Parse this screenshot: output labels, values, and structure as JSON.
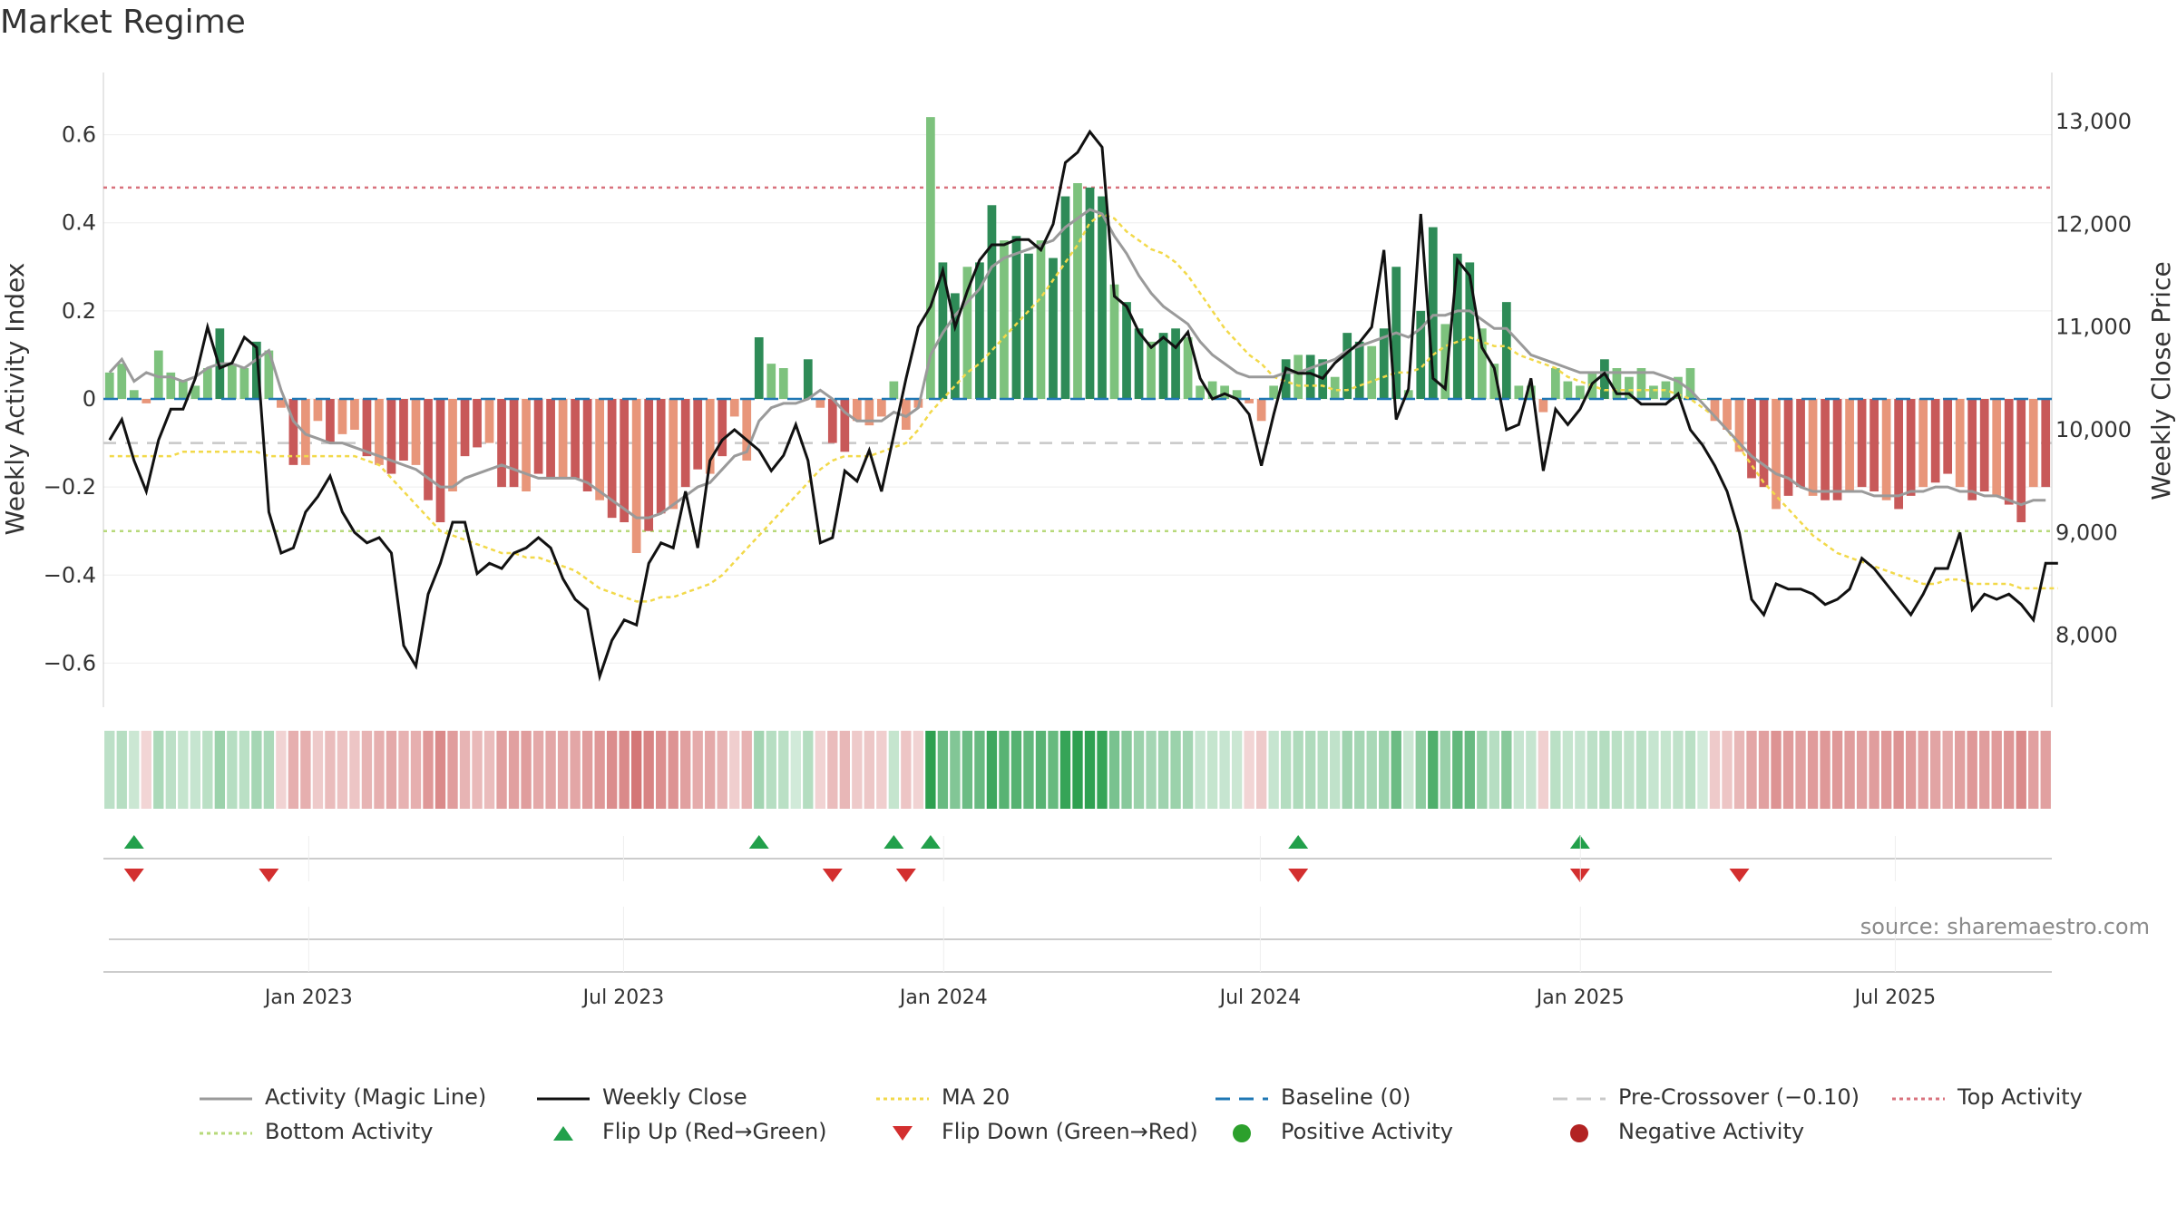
{
  "title": "Market Regime",
  "source": "source: sharemaestro.com",
  "chart_data": {
    "type": "bar",
    "left_axis": {
      "label": "Weekly Activity Index",
      "ylim": [
        -0.7,
        0.7
      ],
      "ticks": [
        -0.6,
        -0.4,
        -0.2,
        0,
        0.2,
        0.4,
        0.6
      ],
      "tick_labels": [
        "−0.6",
        "−0.4",
        "−0.2",
        "0",
        "0.2",
        "0.4",
        "0.6"
      ]
    },
    "right_axis": {
      "label": "Weekly Close Price",
      "ylim": [
        7300,
        13300
      ],
      "ticks": [
        8000,
        9000,
        10000,
        11000,
        12000,
        13000
      ],
      "tick_labels": [
        "8,000",
        "9,000",
        "10,000",
        "11,000",
        "12,000",
        "13,000"
      ]
    },
    "x_axis": {
      "start": "2022-09-05",
      "end": "2025-09-29",
      "ticks": [
        "2023-01-01",
        "2023-07-01",
        "2024-01-01",
        "2024-07-01",
        "2025-01-01",
        "2025-07-01"
      ],
      "tick_labels": [
        "Jan 2023",
        "Jul 2023",
        "Jan 2024",
        "Jul 2024",
        "Jan 2025",
        "Jul 2025"
      ]
    },
    "reference_lines": {
      "baseline": 0,
      "pre_crossover": -0.1,
      "top_activity": 0.48,
      "bottom_activity": -0.3
    },
    "activity": [
      0.06,
      0.08,
      0.02,
      -0.01,
      0.11,
      0.06,
      0.04,
      0.03,
      0.07,
      0.16,
      0.08,
      0.07,
      0.13,
      0.11,
      -0.02,
      -0.15,
      -0.15,
      -0.05,
      -0.1,
      -0.08,
      -0.07,
      -0.13,
      -0.15,
      -0.17,
      -0.14,
      -0.15,
      -0.23,
      -0.28,
      -0.21,
      -0.13,
      -0.11,
      -0.1,
      -0.2,
      -0.2,
      -0.21,
      -0.17,
      -0.18,
      -0.18,
      -0.18,
      -0.21,
      -0.23,
      -0.27,
      -0.28,
      -0.35,
      -0.3,
      -0.26,
      -0.25,
      -0.2,
      -0.16,
      -0.17,
      -0.13,
      -0.04,
      -0.14,
      0.14,
      0.08,
      0.07,
      0.0,
      0.09,
      -0.02,
      -0.1,
      -0.12,
      -0.05,
      -0.06,
      -0.04,
      0.04,
      -0.07,
      -0.02,
      0.64,
      0.31,
      0.24,
      0.3,
      0.31,
      0.44,
      0.36,
      0.37,
      0.33,
      0.36,
      0.32,
      0.46,
      0.49,
      0.48,
      0.46,
      0.26,
      0.22,
      0.16,
      0.13,
      0.15,
      0.16,
      0.14,
      0.03,
      0.04,
      0.03,
      0.02,
      -0.01,
      -0.05,
      0.03,
      0.09,
      0.1,
      0.1,
      0.09,
      0.05,
      0.15,
      0.13,
      0.12,
      0.16,
      0.3,
      0.02,
      0.2,
      0.39,
      0.17,
      0.33,
      0.31,
      0.16,
      0.08,
      0.22,
      0.03,
      0.03,
      -0.03,
      0.07,
      0.04,
      0.03,
      0.06,
      0.09,
      0.07,
      0.05,
      0.07,
      0.03,
      0.04,
      0.05,
      0.07,
      0.0,
      -0.05,
      -0.07,
      -0.12,
      -0.18,
      -0.2,
      -0.25,
      -0.22,
      -0.2,
      -0.22,
      -0.23,
      -0.23,
      -0.21,
      -0.2,
      -0.21,
      -0.23,
      -0.25,
      -0.22,
      -0.2,
      -0.19,
      -0.17,
      -0.2,
      -0.23,
      -0.21,
      -0.22,
      -0.24,
      -0.28,
      -0.2,
      -0.2
    ],
    "weekly_close": [
      9900,
      10100,
      9700,
      9400,
      9900,
      10200,
      10200,
      10500,
      11000,
      10600,
      10650,
      10900,
      10800,
      9200,
      8800,
      8850,
      9200,
      9350,
      9550,
      9200,
      9000,
      8900,
      8950,
      8800,
      7900,
      7700,
      8400,
      8700,
      9100,
      9100,
      8600,
      8700,
      8650,
      8800,
      8850,
      8950,
      8850,
      8550,
      8350,
      8250,
      7600,
      7950,
      8150,
      8100,
      8700,
      8900,
      8850,
      9400,
      8850,
      9700,
      9900,
      10000,
      9900,
      9800,
      9600,
      9750,
      10050,
      9700,
      8900,
      8950,
      9600,
      9500,
      9800,
      9400,
      9950,
      10500,
      11000,
      11200,
      11550,
      11000,
      11350,
      11650,
      11800,
      11800,
      11850,
      11850,
      11750,
      12000,
      12600,
      12700,
      12900,
      12750,
      11300,
      11200,
      10950,
      10800,
      10900,
      10800,
      10950,
      10500,
      10300,
      10350,
      10300,
      10150,
      9650,
      10150,
      10600,
      10550,
      10550,
      10500,
      10650,
      10750,
      10850,
      11000,
      11750,
      10100,
      10400,
      12100,
      10500,
      10400,
      11650,
      11500,
      10800,
      10600,
      10000,
      10050,
      10500,
      9600,
      10200,
      10050,
      10200,
      10450,
      10550,
      10350,
      10350,
      10250,
      10250,
      10250,
      10350,
      10000,
      9850,
      9650,
      9400,
      9000,
      8350,
      8200,
      8500,
      8450,
      8450,
      8400,
      8300,
      8350,
      8450,
      8750,
      8650,
      8500,
      8350,
      8200,
      8400,
      8650,
      8650,
      9000,
      8250,
      8400,
      8350,
      8400,
      8300,
      8150,
      8700,
      8700
    ],
    "magic_line": [
      0.06,
      0.09,
      0.04,
      0.06,
      0.05,
      0.05,
      0.04,
      0.05,
      0.07,
      0.08,
      0.08,
      0.07,
      0.09,
      0.11,
      0.02,
      -0.05,
      -0.08,
      -0.09,
      -0.1,
      -0.1,
      -0.11,
      -0.12,
      -0.13,
      -0.14,
      -0.15,
      -0.16,
      -0.18,
      -0.2,
      -0.2,
      -0.18,
      -0.17,
      -0.16,
      -0.15,
      -0.16,
      -0.17,
      -0.18,
      -0.18,
      -0.18,
      -0.18,
      -0.19,
      -0.21,
      -0.23,
      -0.25,
      -0.27,
      -0.27,
      -0.26,
      -0.24,
      -0.22,
      -0.2,
      -0.19,
      -0.16,
      -0.13,
      -0.12,
      -0.05,
      -0.02,
      -0.01,
      -0.01,
      0.0,
      0.02,
      0.0,
      -0.03,
      -0.05,
      -0.05,
      -0.05,
      -0.03,
      -0.04,
      -0.02,
      0.1,
      0.15,
      0.19,
      0.22,
      0.25,
      0.3,
      0.32,
      0.33,
      0.34,
      0.35,
      0.36,
      0.39,
      0.41,
      0.43,
      0.42,
      0.37,
      0.33,
      0.28,
      0.24,
      0.21,
      0.19,
      0.17,
      0.13,
      0.1,
      0.08,
      0.06,
      0.05,
      0.05,
      0.05,
      0.06,
      0.06,
      0.07,
      0.08,
      0.09,
      0.11,
      0.12,
      0.13,
      0.14,
      0.15,
      0.14,
      0.16,
      0.19,
      0.19,
      0.2,
      0.2,
      0.18,
      0.16,
      0.16,
      0.13,
      0.1,
      0.09,
      0.08,
      0.07,
      0.06,
      0.06,
      0.06,
      0.06,
      0.06,
      0.06,
      0.06,
      0.05,
      0.04,
      0.02,
      -0.01,
      -0.04,
      -0.07,
      -0.1,
      -0.13,
      -0.15,
      -0.17,
      -0.18,
      -0.2,
      -0.21,
      -0.21,
      -0.21,
      -0.21,
      -0.21,
      -0.22,
      -0.22,
      -0.22,
      -0.21,
      -0.21,
      -0.2,
      -0.2,
      -0.21,
      -0.21,
      -0.22,
      -0.22,
      -0.23,
      -0.24,
      -0.23,
      -0.23
    ],
    "ma20": [
      -0.13,
      -0.13,
      -0.13,
      -0.13,
      -0.13,
      -0.13,
      -0.12,
      -0.12,
      -0.12,
      -0.12,
      -0.12,
      -0.12,
      -0.12,
      -0.13,
      -0.13,
      -0.13,
      -0.13,
      -0.13,
      -0.13,
      -0.13,
      -0.13,
      -0.14,
      -0.15,
      -0.18,
      -0.21,
      -0.24,
      -0.27,
      -0.3,
      -0.31,
      -0.32,
      -0.33,
      -0.34,
      -0.35,
      -0.35,
      -0.36,
      -0.36,
      -0.37,
      -0.38,
      -0.39,
      -0.41,
      -0.43,
      -0.44,
      -0.45,
      -0.46,
      -0.46,
      -0.45,
      -0.45,
      -0.44,
      -0.43,
      -0.42,
      -0.4,
      -0.37,
      -0.34,
      -0.31,
      -0.28,
      -0.25,
      -0.22,
      -0.19,
      -0.16,
      -0.14,
      -0.13,
      -0.13,
      -0.13,
      -0.12,
      -0.11,
      -0.1,
      -0.07,
      -0.03,
      0.0,
      0.03,
      0.06,
      0.08,
      0.11,
      0.14,
      0.17,
      0.2,
      0.23,
      0.27,
      0.31,
      0.35,
      0.4,
      0.42,
      0.41,
      0.38,
      0.36,
      0.34,
      0.33,
      0.31,
      0.28,
      0.24,
      0.2,
      0.16,
      0.13,
      0.1,
      0.08,
      0.05,
      0.04,
      0.03,
      0.03,
      0.03,
      0.02,
      0.02,
      0.03,
      0.04,
      0.05,
      0.06,
      0.06,
      0.07,
      0.1,
      0.12,
      0.13,
      0.14,
      0.13,
      0.12,
      0.12,
      0.1,
      0.09,
      0.08,
      0.07,
      0.05,
      0.04,
      0.03,
      0.02,
      0.02,
      0.02,
      0.02,
      0.02,
      0.02,
      0.01,
      0.0,
      -0.02,
      -0.04,
      -0.07,
      -0.11,
      -0.15,
      -0.19,
      -0.22,
      -0.25,
      -0.28,
      -0.31,
      -0.33,
      -0.35,
      -0.36,
      -0.37,
      -0.38,
      -0.39,
      -0.4,
      -0.41,
      -0.42,
      -0.42,
      -0.41,
      -0.41,
      -0.42,
      -0.42,
      -0.42,
      -0.42,
      -0.43,
      -0.43,
      -0.43,
      -0.43
    ],
    "flip_up_weeks": [
      2,
      53,
      64,
      67,
      97,
      120
    ],
    "flip_down_weeks": [
      2,
      13,
      59,
      65,
      97,
      120,
      133
    ],
    "colors": {
      "strong_green": "#2e8b57",
      "light_green": "#7dc27d",
      "strong_red": "#c85959",
      "light_red": "#e8967a",
      "magic_line": "#9a9a9a",
      "weekly_close": "#111111",
      "ma20": "#f2d94a",
      "baseline": "#1f77b4",
      "pre_crossover": "#c8c8c8",
      "top_activity": "#d9727d",
      "bottom_activity": "#b7d97a",
      "flip_up": "#22a04b",
      "flip_down": "#d32f2f",
      "positive_dot": "#2ca02c",
      "negative_dot": "#b22222"
    }
  },
  "legend": [
    {
      "label": "Activity (Magic Line)",
      "kind": "line",
      "color": "#9a9a9a"
    },
    {
      "label": "Weekly Close",
      "kind": "line",
      "color": "#111111"
    },
    {
      "label": "MA 20",
      "kind": "dotted",
      "color": "#f2d94a"
    },
    {
      "label": "Baseline (0)",
      "kind": "dashed",
      "color": "#1f77b4"
    },
    {
      "label": "Pre-Crossover (−0.10)",
      "kind": "dashed",
      "color": "#c8c8c8"
    },
    {
      "label": "Top Activity",
      "kind": "dotted",
      "color": "#d9727d"
    },
    {
      "label": "Bottom Activity",
      "kind": "dotted",
      "color": "#b7d97a"
    },
    {
      "label": "Flip Up (Red→Green)",
      "kind": "tri-up",
      "color": "#22a04b"
    },
    {
      "label": "Flip Down (Green→Red)",
      "kind": "tri-down",
      "color": "#d32f2f"
    },
    {
      "label": "Positive Activity",
      "kind": "dot",
      "color": "#2ca02c"
    },
    {
      "label": "Negative Activity",
      "kind": "dot",
      "color": "#b22222"
    }
  ]
}
